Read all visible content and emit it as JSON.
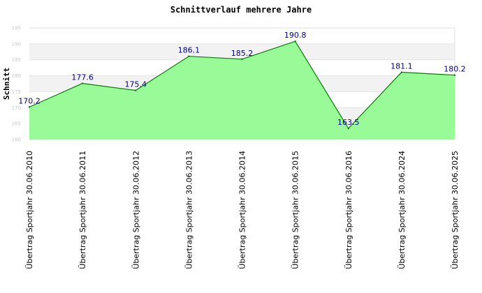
{
  "chart_data": {
    "type": "area",
    "title": "Schnittverlauf mehrere Jahre",
    "ylabel": "Schnitt",
    "xlabel": "",
    "ylim": [
      160,
      195
    ],
    "yticks": [
      160,
      165,
      170,
      175,
      180,
      185,
      190,
      195
    ],
    "categories": [
      "Übertrag Sportjahr 30.06.2010",
      "Übertrag Sportjahr 30.06.2011",
      "Übertrag Sportjahr 30.06.2012",
      "Übertrag Sportjahr 30.06.2013",
      "Übertrag Sportjahr 30.06.2014",
      "Übertrag Sportjahr 30.06.2015",
      "Übertrag Sportjahr 30.06.2016",
      "Übertrag Sportjahr 30.06.2024",
      "Übertrag Sportjahr 30.06.2025"
    ],
    "values": [
      170.2,
      177.6,
      175.4,
      186.1,
      185.2,
      190.8,
      163.5,
      181.1,
      180.2
    ],
    "labels": [
      "170.2",
      "177.6",
      "175.4",
      "186.1",
      "185.2",
      "190.8",
      "163.5",
      "181.1",
      "180.2"
    ],
    "grid": true,
    "colors": {
      "fill": "#98fb98",
      "line": "#008000",
      "band": "#f2f2f2",
      "grid": "#e2e2e2",
      "label": "#000080"
    }
  }
}
